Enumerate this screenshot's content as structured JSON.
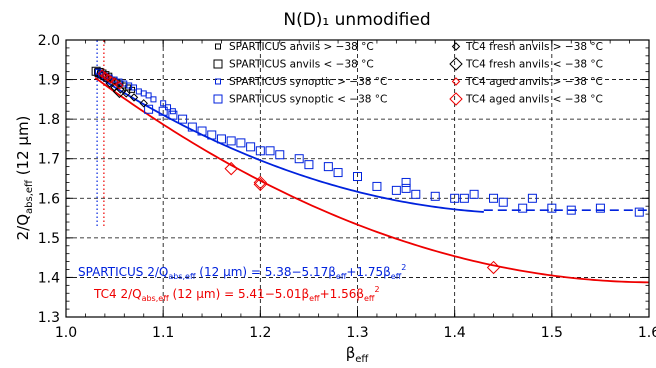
{
  "chart_data": {
    "type": "scatter",
    "title": "N(D)₁ unmodified",
    "xlabel": "βeff",
    "ylabel": "2/Qabs,eff (12 μm)",
    "xlim": [
      1.0,
      1.6
    ],
    "ylim": [
      1.3,
      2.0
    ],
    "xticks": [
      "1.0",
      "1.1",
      "1.2",
      "1.3",
      "1.4",
      "1.5",
      "1.6"
    ],
    "yticks": [
      "1.3",
      "1.4",
      "1.5",
      "1.6",
      "1.7",
      "1.8",
      "1.9",
      "2.0"
    ],
    "grid": "dashed",
    "colors": {
      "sparticus": "#0022dd",
      "tc4_aged": "#ee0000",
      "tc4_fresh": "#000000"
    },
    "legend": [
      {
        "label": "SPARTICUS anvils > −38 °C",
        "marker": "square-small",
        "color": "#000000"
      },
      {
        "label": "SPARTICUS anvils < −38 °C",
        "marker": "square-large",
        "color": "#000000"
      },
      {
        "label": "SPARTICUS synoptic > −38 °C",
        "marker": "square-small",
        "color": "#0022dd"
      },
      {
        "label": "SPARTICUS synoptic < −38 °C",
        "marker": "square-large",
        "color": "#0022dd"
      },
      {
        "label": "TC4 fresh anvils > −38 °C",
        "marker": "diamond-small",
        "color": "#000000"
      },
      {
        "label": "TC4 fresh anvils < −38 °C",
        "marker": "diamond-large",
        "color": "#000000"
      },
      {
        "label": "TC4 aged anvils > −38 °C",
        "marker": "diamond-small",
        "color": "#ee0000"
      },
      {
        "label": "TC4 aged anvils < −38 °C",
        "marker": "diamond-large",
        "color": "#ee0000"
      }
    ],
    "fits": [
      {
        "text": "SPARTICUS 2/Qabs,eff (12 μm) = 5.38−5.17βeff+1.75βeff²",
        "color": "#0022dd",
        "coefficients": [
          5.38,
          -5.17,
          1.75
        ],
        "x_range": [
          1.03,
          1.43
        ],
        "dashed_extension": [
          1.43,
          1.6
        ],
        "extension_y": 1.57
      },
      {
        "text": "TC4 2/Qabs,eff (12 μm) = 5.41−5.01βeff+1.56βeff²",
        "color": "#ee0000",
        "coefficients": [
          5.41,
          -5.01,
          1.56
        ],
        "x_range": [
          1.03,
          1.6
        ]
      }
    ],
    "vertical_lines": [
      {
        "x": 1.032,
        "color": "#0022dd",
        "style": "dotted",
        "y_range": [
          1.53,
          2.0
        ]
      },
      {
        "x": 1.039,
        "color": "#ee0000",
        "style": "dotted",
        "y_range": [
          1.53,
          2.0
        ]
      }
    ],
    "series": [
      {
        "name": "SPARTICUS anvils > −38 °C",
        "marker": "square-small",
        "color": "#000000",
        "x": [
          1.032,
          1.035,
          1.038,
          1.041,
          1.044,
          1.047,
          1.05,
          1.053,
          1.056,
          1.06,
          1.064,
          1.068
        ],
        "y": [
          1.92,
          1.915,
          1.912,
          1.908,
          1.905,
          1.9,
          1.897,
          1.893,
          1.89,
          1.885,
          1.88,
          1.874
        ]
      },
      {
        "name": "SPARTICUS anvils < −38 °C",
        "marker": "square-large",
        "color": "#000000",
        "x": [
          1.031,
          1.034,
          1.037,
          1.04,
          1.043
        ],
        "y": [
          1.921,
          1.918,
          1.914,
          1.91,
          1.906
        ]
      },
      {
        "name": "SPARTICUS synoptic > −38 °C",
        "marker": "square-small",
        "color": "#0022dd",
        "x": [
          1.033,
          1.036,
          1.04,
          1.045,
          1.05,
          1.055,
          1.06,
          1.065,
          1.07,
          1.075,
          1.08,
          1.085,
          1.09,
          1.1,
          1.105,
          1.11
        ],
        "y": [
          1.92,
          1.915,
          1.91,
          1.905,
          1.9,
          1.895,
          1.89,
          1.885,
          1.88,
          1.87,
          1.865,
          1.86,
          1.85,
          1.84,
          1.83,
          1.82
        ]
      },
      {
        "name": "SPARTICUS synoptic < −38 °C",
        "marker": "square-large",
        "color": "#0022dd",
        "x": [
          1.085,
          1.1,
          1.11,
          1.12,
          1.13,
          1.14,
          1.15,
          1.16,
          1.17,
          1.18,
          1.19,
          1.2,
          1.21,
          1.22,
          1.24,
          1.25,
          1.27,
          1.28,
          1.3,
          1.32,
          1.34,
          1.35,
          1.35,
          1.36,
          1.38,
          1.4,
          1.41,
          1.42,
          1.44,
          1.45,
          1.47,
          1.48,
          1.5,
          1.52,
          1.55,
          1.59
        ],
        "y": [
          1.825,
          1.82,
          1.81,
          1.8,
          1.78,
          1.77,
          1.76,
          1.75,
          1.745,
          1.74,
          1.73,
          1.72,
          1.72,
          1.71,
          1.7,
          1.685,
          1.68,
          1.665,
          1.655,
          1.63,
          1.62,
          1.64,
          1.625,
          1.61,
          1.605,
          1.6,
          1.6,
          1.61,
          1.6,
          1.59,
          1.575,
          1.6,
          1.575,
          1.57,
          1.575,
          1.565
        ]
      },
      {
        "name": "TC4 fresh anvils > −38 °C",
        "marker": "diamond-small",
        "color": "#000000",
        "x": [
          1.045,
          1.05,
          1.056,
          1.062,
          1.07,
          1.08
        ],
        "y": [
          1.89,
          1.88,
          1.875,
          1.865,
          1.855,
          1.84
        ]
      },
      {
        "name": "TC4 fresh anvils < −38 °C",
        "marker": "diamond-large",
        "color": "#000000",
        "x": [
          1.055
        ],
        "y": [
          1.87
        ]
      },
      {
        "name": "TC4 aged anvils > −38 °C",
        "marker": "diamond-small",
        "color": "#ee0000",
        "x": [
          1.037,
          1.04,
          1.043,
          1.046,
          1.05,
          1.055
        ],
        "y": [
          1.915,
          1.91,
          1.905,
          1.9,
          1.895,
          1.885
        ]
      },
      {
        "name": "TC4 aged anvils < −38 °C",
        "marker": "diamond-large",
        "color": "#ee0000",
        "x": [
          1.2,
          1.2,
          1.17,
          1.44
        ],
        "y": [
          1.64,
          1.635,
          1.675,
          1.425
        ]
      }
    ]
  }
}
